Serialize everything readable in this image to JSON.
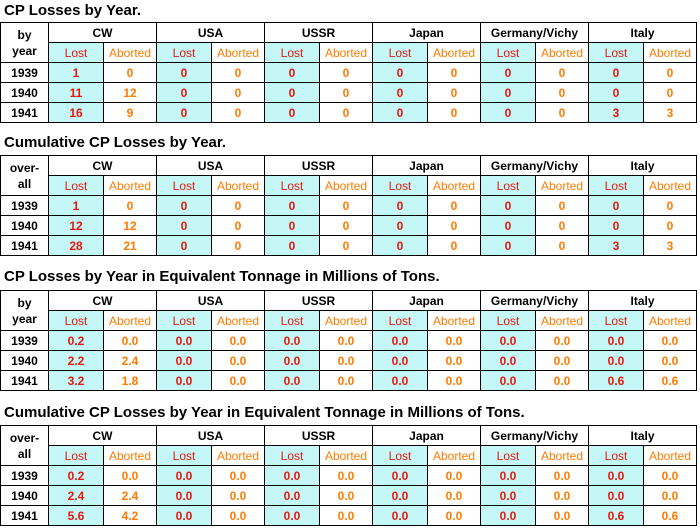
{
  "columns": {
    "nations": [
      "CW",
      "USA",
      "USSR",
      "Japan",
      "Germany/Vichy",
      "Italy"
    ],
    "lost": "Lost",
    "aborted": "Aborted"
  },
  "sections": [
    {
      "title": "CP Losses by Year.",
      "row_header": [
        "by",
        "year"
      ],
      "rows": [
        {
          "year": "1939",
          "values": [
            "1",
            "0",
            "0",
            "0",
            "0",
            "0",
            "0",
            "0",
            "0",
            "0",
            "0",
            "0"
          ]
        },
        {
          "year": "1940",
          "values": [
            "11",
            "12",
            "0",
            "0",
            "0",
            "0",
            "0",
            "0",
            "0",
            "0",
            "0",
            "0"
          ]
        },
        {
          "year": "1941",
          "values": [
            "16",
            "9",
            "0",
            "0",
            "0",
            "0",
            "0",
            "0",
            "0",
            "0",
            "3",
            "3"
          ]
        }
      ]
    },
    {
      "title": "Cumulative CP Losses by Year.",
      "row_header": [
        "over-",
        "all"
      ],
      "rows": [
        {
          "year": "1939",
          "values": [
            "1",
            "0",
            "0",
            "0",
            "0",
            "0",
            "0",
            "0",
            "0",
            "0",
            "0",
            "0"
          ]
        },
        {
          "year": "1940",
          "values": [
            "12",
            "12",
            "0",
            "0",
            "0",
            "0",
            "0",
            "0",
            "0",
            "0",
            "0",
            "0"
          ]
        },
        {
          "year": "1941",
          "values": [
            "28",
            "21",
            "0",
            "0",
            "0",
            "0",
            "0",
            "0",
            "0",
            "0",
            "3",
            "3"
          ]
        }
      ]
    },
    {
      "title": "CP Losses by Year in Equivalent Tonnage in Millions of Tons.",
      "row_header": [
        "by",
        "year"
      ],
      "rows": [
        {
          "year": "1939",
          "values": [
            "0.2",
            "0.0",
            "0.0",
            "0.0",
            "0.0",
            "0.0",
            "0.0",
            "0.0",
            "0.0",
            "0.0",
            "0.0",
            "0.0"
          ]
        },
        {
          "year": "1940",
          "values": [
            "2.2",
            "2.4",
            "0.0",
            "0.0",
            "0.0",
            "0.0",
            "0.0",
            "0.0",
            "0.0",
            "0.0",
            "0.0",
            "0.0"
          ]
        },
        {
          "year": "1941",
          "values": [
            "3.2",
            "1.8",
            "0.0",
            "0.0",
            "0.0",
            "0.0",
            "0.0",
            "0.0",
            "0.0",
            "0.0",
            "0.6",
            "0.6"
          ]
        }
      ]
    },
    {
      "title": "Cumulative CP Losses by Year in Equivalent Tonnage in Millions of Tons.",
      "row_header": [
        "over-",
        "all"
      ],
      "rows": [
        {
          "year": "1939",
          "values": [
            "0.2",
            "0.0",
            "0.0",
            "0.0",
            "0.0",
            "0.0",
            "0.0",
            "0.0",
            "0.0",
            "0.0",
            "0.0",
            "0.0"
          ]
        },
        {
          "year": "1940",
          "values": [
            "2.4",
            "2.4",
            "0.0",
            "0.0",
            "0.0",
            "0.0",
            "0.0",
            "0.0",
            "0.0",
            "0.0",
            "0.0",
            "0.0"
          ]
        },
        {
          "year": "1941",
          "values": [
            "5.6",
            "4.2",
            "0.0",
            "0.0",
            "0.0",
            "0.0",
            "0.0",
            "0.0",
            "0.0",
            "0.0",
            "0.6",
            "0.6"
          ]
        }
      ]
    }
  ],
  "colors": {
    "lost_fill": "#c5f7f7",
    "lost_text": "#e8170d",
    "aborted_text": "#ff7b00"
  }
}
